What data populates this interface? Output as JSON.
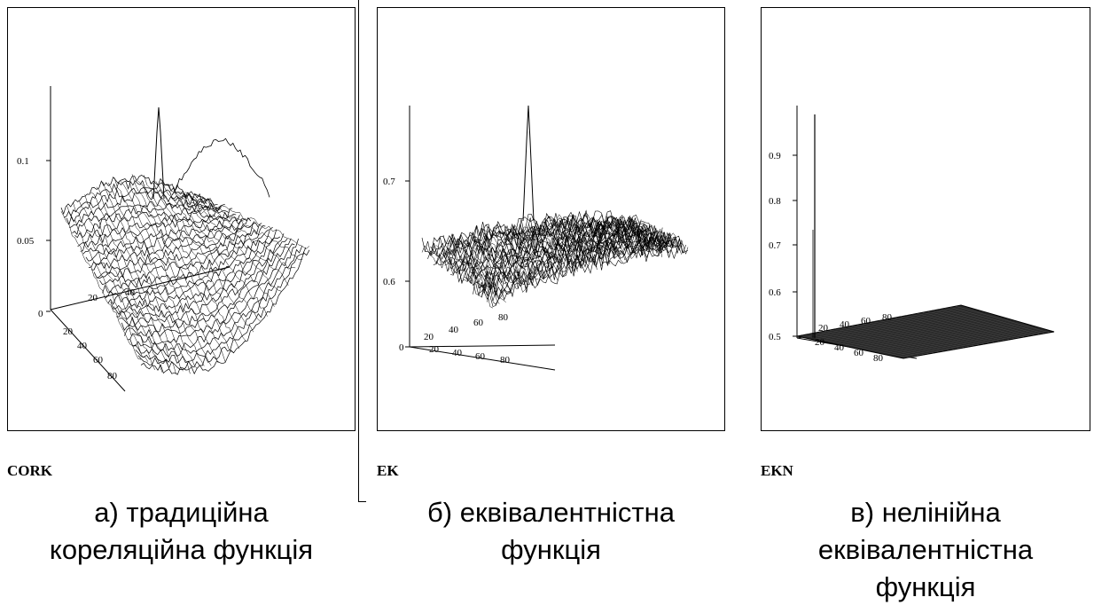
{
  "chart_data": [
    {
      "id": "cork",
      "type": "surface3d",
      "variable": "CORK",
      "caption": [
        "а) традиційна",
        "кореляційна функція"
      ],
      "z_ticks": [
        "0.1",
        "0.05",
        "0"
      ],
      "z_tick_values": [
        0.1,
        0.05,
        0
      ],
      "x_ticks": [
        "20",
        "40"
      ],
      "y_ticks": [
        "20",
        "40",
        "60",
        "80"
      ],
      "peak_value": 0.13,
      "baseline_value": 0.06
    },
    {
      "id": "ek",
      "type": "surface3d",
      "variable": "EK",
      "caption": [
        "б) еквівалентністна",
        "функція"
      ],
      "z_ticks": [
        "0.7",
        "0.6",
        "0"
      ],
      "z_tick_values": [
        0.7,
        0.6,
        0
      ],
      "x_ticks": [
        "20",
        "40",
        "60",
        "80"
      ],
      "y_ticks": [
        "20",
        "40",
        "60",
        "80"
      ],
      "peak_value": 0.77,
      "baseline_value": 0.62
    },
    {
      "id": "ekn",
      "type": "surface3d",
      "variable": "EKN",
      "caption": [
        "в) нелінійна",
        "еквівалентністна",
        "функція"
      ],
      "z_ticks": [
        "0.9",
        "0.8",
        "0.7",
        "0.6",
        "0.5"
      ],
      "z_tick_values": [
        0.9,
        0.8,
        0.7,
        0.6,
        0.5
      ],
      "x_ticks": [
        "20",
        "40",
        "60",
        "80"
      ],
      "y_ticks": [
        "20",
        "40",
        "60",
        "80"
      ],
      "peak_value": 1.0,
      "baseline_value": 0.5
    }
  ],
  "colors": {
    "ink": "#000000",
    "paper": "#ffffff"
  }
}
